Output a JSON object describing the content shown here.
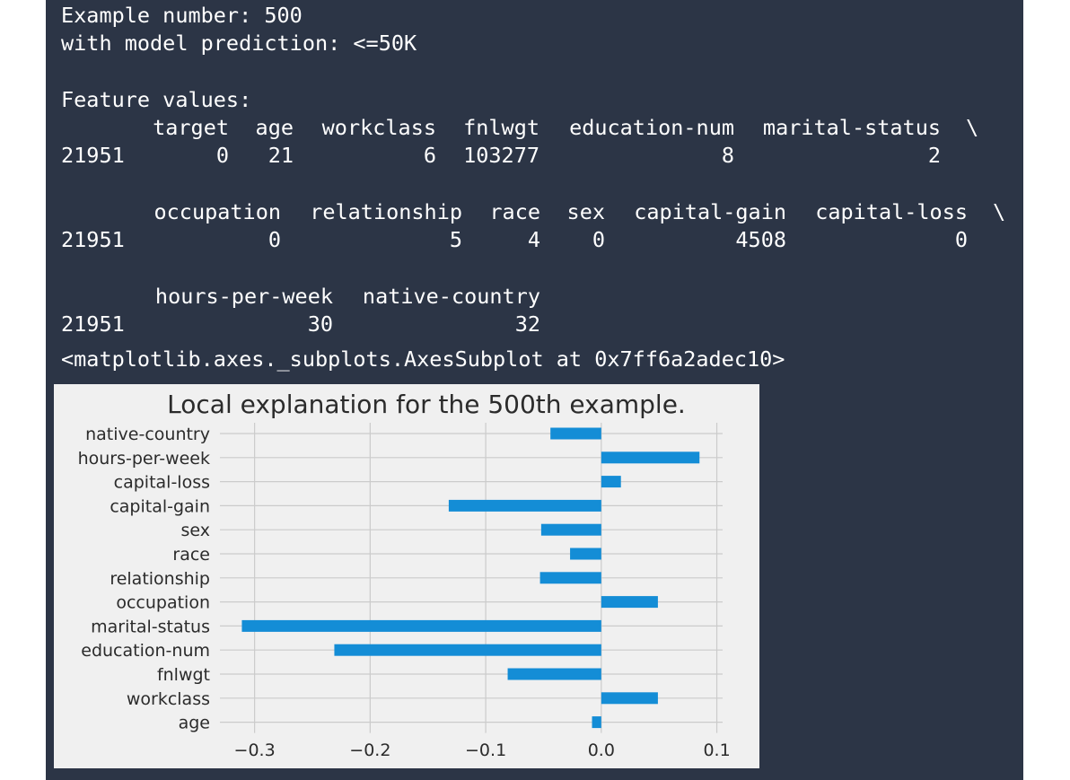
{
  "output": {
    "example_line": "Example number: 500",
    "prediction_line": "with model prediction: <=50K",
    "feature_values_label": "Feature values:",
    "row_index": "21951",
    "continuation": "\\",
    "block1": {
      "headers": [
        "target",
        "age",
        "workclass",
        "fnlwgt",
        "education-num",
        "marital-status"
      ],
      "values": [
        "0",
        "21",
        "6",
        "103277",
        "8",
        "2"
      ]
    },
    "block2": {
      "headers": [
        "occupation",
        "relationship",
        "race",
        "sex",
        "capital-gain",
        "capital-loss"
      ],
      "values": [
        "0",
        "5",
        "4",
        "0",
        "4508",
        "0"
      ]
    },
    "block3": {
      "headers": [
        "hours-per-week",
        "native-country"
      ],
      "values": [
        "30",
        "32"
      ]
    },
    "axes_repr": "<matplotlib.axes._subplots.AxesSubplot at 0x7ff6a2adec10>"
  },
  "colors": {
    "cell_background": "#2c3546",
    "bar": "#148dd6",
    "plot_background": "#f0f0f0",
    "grid": "#cbcbcb"
  },
  "chart_data": {
    "type": "bar",
    "orientation": "horizontal",
    "title": "Local explanation for the 500th example.",
    "categories": [
      "age",
      "workclass",
      "fnlwgt",
      "education-num",
      "marital-status",
      "occupation",
      "relationship",
      "race",
      "sex",
      "capital-gain",
      "capital-loss",
      "hours-per-week",
      "native-country"
    ],
    "values": [
      -0.008,
      0.049,
      -0.081,
      -0.231,
      -0.311,
      0.049,
      -0.053,
      -0.027,
      -0.052,
      -0.132,
      0.017,
      0.085,
      -0.044
    ],
    "xticks": [
      "−0.3",
      "−0.2",
      "−0.1",
      "0.0",
      "0.1"
    ],
    "xlim": [
      -0.33,
      0.105
    ],
    "grid": true,
    "legend": "none"
  }
}
